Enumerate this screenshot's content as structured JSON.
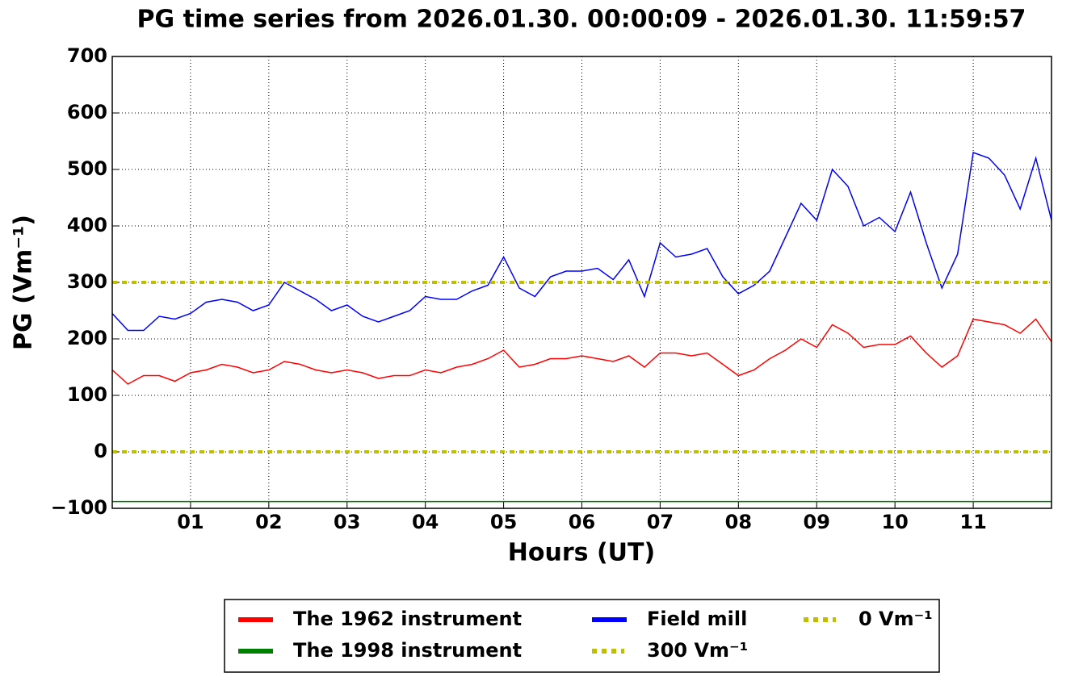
{
  "chart_data": {
    "type": "line",
    "title": "PG time series from 2026.01.30. 00:00:09 - 2026.01.30. 11:59:57",
    "x_label": "Hours (UT)",
    "y_label": "PG (Vm⁻¹)",
    "xlim": [
      0,
      12
    ],
    "ylim": [
      -100,
      700
    ],
    "xticks": [
      {
        "value": 1,
        "label": "01"
      },
      {
        "value": 2,
        "label": "02"
      },
      {
        "value": 3,
        "label": "03"
      },
      {
        "value": 4,
        "label": "04"
      },
      {
        "value": 5,
        "label": "05"
      },
      {
        "value": 6,
        "label": "06"
      },
      {
        "value": 7,
        "label": "07"
      },
      {
        "value": 8,
        "label": "08"
      },
      {
        "value": 9,
        "label": "09"
      },
      {
        "value": 10,
        "label": "10"
      },
      {
        "value": 11,
        "label": "11"
      }
    ],
    "yticks": [
      {
        "value": -100,
        "label": "−100"
      },
      0,
      100,
      200,
      300,
      400,
      500,
      600,
      700
    ],
    "grid": true,
    "legend": "bottom",
    "series": [
      {
        "name": "The 1962 instrument",
        "color": "#ff0000",
        "dash": false,
        "x": [
          0,
          0.2,
          0.4,
          0.6,
          0.8,
          1,
          1.2,
          1.4,
          1.6,
          1.8,
          2,
          2.2,
          2.4,
          2.6,
          2.8,
          3,
          3.2,
          3.4,
          3.6,
          3.8,
          4,
          4.2,
          4.4,
          4.6,
          4.8,
          5,
          5.2,
          5.4,
          5.6,
          5.8,
          6,
          6.2,
          6.4,
          6.6,
          6.8,
          7,
          7.2,
          7.4,
          7.6,
          7.8,
          8,
          8.2,
          8.4,
          8.6,
          8.8,
          9,
          9.2,
          9.4,
          9.6,
          9.8,
          10,
          10.2,
          10.4,
          10.6,
          10.8,
          11,
          11.2,
          11.4,
          11.6,
          11.8,
          12
        ],
        "values": [
          145,
          120,
          135,
          135,
          125,
          140,
          145,
          155,
          150,
          140,
          145,
          160,
          155,
          145,
          140,
          145,
          140,
          130,
          135,
          135,
          145,
          140,
          150,
          155,
          165,
          180,
          150,
          155,
          165,
          165,
          170,
          165,
          160,
          170,
          150,
          175,
          175,
          170,
          175,
          155,
          135,
          145,
          165,
          180,
          200,
          185,
          225,
          210,
          185,
          190,
          190,
          205,
          175,
          150,
          170,
          235,
          230,
          225,
          210,
          235,
          195
        ]
      },
      {
        "name": "The 1998 instrument",
        "color": "#008000",
        "dash": false,
        "x": [
          0,
          12
        ],
        "values": [
          -88,
          -88
        ]
      },
      {
        "name": "Field mill",
        "color": "#0000ff",
        "dash": false,
        "x": [
          0,
          0.2,
          0.4,
          0.6,
          0.8,
          1,
          1.2,
          1.4,
          1.6,
          1.8,
          2,
          2.2,
          2.4,
          2.6,
          2.8,
          3,
          3.2,
          3.4,
          3.6,
          3.8,
          4,
          4.2,
          4.4,
          4.6,
          4.8,
          5,
          5.2,
          5.4,
          5.6,
          5.8,
          6,
          6.2,
          6.4,
          6.6,
          6.8,
          7,
          7.2,
          7.4,
          7.6,
          7.8,
          8,
          8.2,
          8.4,
          8.6,
          8.8,
          9,
          9.2,
          9.4,
          9.6,
          9.8,
          10,
          10.2,
          10.4,
          10.6,
          10.8,
          11,
          11.2,
          11.4,
          11.6,
          11.8,
          12
        ],
        "values": [
          245,
          215,
          215,
          240,
          235,
          245,
          265,
          270,
          265,
          250,
          260,
          300,
          285,
          270,
          250,
          260,
          240,
          230,
          240,
          250,
          275,
          270,
          270,
          285,
          295,
          345,
          290,
          275,
          310,
          320,
          320,
          325,
          305,
          340,
          275,
          370,
          345,
          350,
          360,
          310,
          280,
          295,
          320,
          380,
          440,
          410,
          500,
          470,
          400,
          415,
          390,
          460,
          370,
          290,
          350,
          530,
          520,
          490,
          430,
          520,
          410
        ]
      },
      {
        "name": "300 Vm⁻¹",
        "color": "#bfbf00",
        "dash": true,
        "x": [
          0,
          12
        ],
        "values": [
          300,
          300
        ]
      },
      {
        "name": "0 Vm⁻¹",
        "color": "#bfbf00",
        "dash": true,
        "x": [
          0,
          12
        ],
        "values": [
          0,
          0
        ]
      }
    ]
  }
}
